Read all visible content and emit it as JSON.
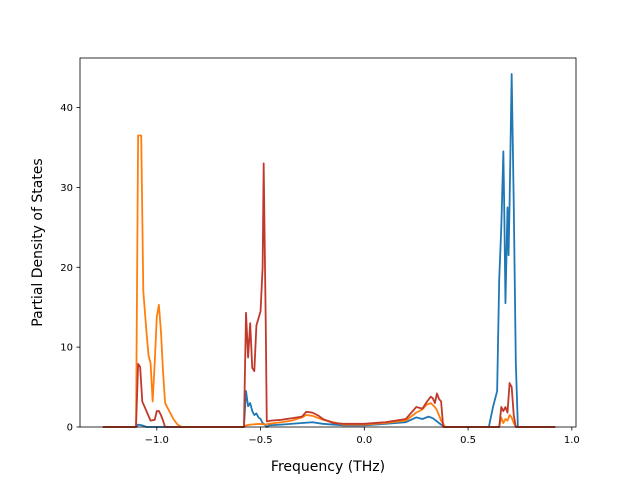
{
  "chart_data": {
    "type": "line",
    "title": "",
    "xlabel": "Frequency (THz)",
    "ylabel": "Partial Density of States",
    "xlim": [
      -1.37,
      1.02
    ],
    "ylim": [
      0,
      46.2
    ],
    "xticks": [
      -1.0,
      -0.5,
      0.0,
      0.5,
      1.0
    ],
    "xtick_labels": [
      "−1.0",
      "−0.5",
      "0.0",
      "0.5",
      "1.0"
    ],
    "yticks": [
      0,
      10,
      20,
      30,
      40
    ],
    "ytick_labels": [
      "0",
      "10",
      "20",
      "30",
      "40"
    ],
    "grid": false,
    "legend": "none",
    "series": [
      {
        "color": "#1f77b4",
        "points": [
          [
            -1.26,
            0
          ],
          [
            -1.1,
            0
          ],
          [
            -1.09,
            0.3
          ],
          [
            -1.07,
            0.2
          ],
          [
            -1.05,
            0
          ],
          [
            -0.58,
            0
          ],
          [
            -0.57,
            4.5
          ],
          [
            -0.56,
            2.6
          ],
          [
            -0.55,
            3
          ],
          [
            -0.54,
            2
          ],
          [
            -0.53,
            1.5
          ],
          [
            -0.52,
            1.7
          ],
          [
            -0.51,
            1.2
          ],
          [
            -0.5,
            1
          ],
          [
            -0.49,
            0.5
          ],
          [
            -0.48,
            0.3
          ],
          [
            -0.47,
            0
          ],
          [
            -0.46,
            0.2
          ],
          [
            -0.4,
            0.3
          ],
          [
            -0.3,
            0.5
          ],
          [
            -0.25,
            0.6
          ],
          [
            -0.2,
            0.4
          ],
          [
            -0.1,
            0.2
          ],
          [
            0,
            0.2
          ],
          [
            0.1,
            0.4
          ],
          [
            0.2,
            0.6
          ],
          [
            0.25,
            1.2
          ],
          [
            0.28,
            1
          ],
          [
            0.31,
            1.3
          ],
          [
            0.33,
            1.1
          ],
          [
            0.35,
            0.7
          ],
          [
            0.37,
            0.3
          ],
          [
            0.39,
            0
          ],
          [
            0.6,
            0
          ],
          [
            0.62,
            2.5
          ],
          [
            0.64,
            4.5
          ],
          [
            0.65,
            18.5
          ],
          [
            0.66,
            25
          ],
          [
            0.67,
            34.5
          ],
          [
            0.675,
            26
          ],
          [
            0.68,
            15.5
          ],
          [
            0.69,
            27.5
          ],
          [
            0.695,
            21.5
          ],
          [
            0.7,
            28
          ],
          [
            0.71,
            44.2
          ],
          [
            0.72,
            28
          ],
          [
            0.73,
            8
          ],
          [
            0.74,
            0
          ],
          [
            0.92,
            0
          ]
        ]
      },
      {
        "color": "#ff7f0e",
        "points": [
          [
            -1.26,
            0
          ],
          [
            -1.1,
            0
          ],
          [
            -1.09,
            36.5
          ],
          [
            -1.075,
            36.5
          ],
          [
            -1.065,
            17
          ],
          [
            -1.05,
            12
          ],
          [
            -1.04,
            9
          ],
          [
            -1.03,
            8
          ],
          [
            -1.02,
            3.2
          ],
          [
            -1.01,
            8
          ],
          [
            -1.0,
            13.8
          ],
          [
            -0.99,
            15.3
          ],
          [
            -0.98,
            12
          ],
          [
            -0.97,
            7
          ],
          [
            -0.96,
            3
          ],
          [
            -0.94,
            2
          ],
          [
            -0.92,
            1
          ],
          [
            -0.9,
            0.3
          ],
          [
            -0.88,
            0
          ],
          [
            -0.58,
            0
          ],
          [
            -0.57,
            0.2
          ],
          [
            -0.55,
            0.3
          ],
          [
            -0.5,
            0.4
          ],
          [
            -0.48,
            0.3
          ],
          [
            -0.46,
            0.4
          ],
          [
            -0.4,
            0.6
          ],
          [
            -0.35,
            0.8
          ],
          [
            -0.3,
            1.2
          ],
          [
            -0.28,
            1.5
          ],
          [
            -0.25,
            1.4
          ],
          [
            -0.2,
            0.9
          ],
          [
            -0.1,
            0.3
          ],
          [
            0,
            0.3
          ],
          [
            0.1,
            0.5
          ],
          [
            0.2,
            0.8
          ],
          [
            0.25,
            1.8
          ],
          [
            0.28,
            2.2
          ],
          [
            0.3,
            2.8
          ],
          [
            0.32,
            3
          ],
          [
            0.34,
            2.5
          ],
          [
            0.35,
            2.1
          ],
          [
            0.37,
            0.8
          ],
          [
            0.39,
            0
          ],
          [
            0.65,
            0
          ],
          [
            0.66,
            1.2
          ],
          [
            0.67,
            0.5
          ],
          [
            0.68,
            1
          ],
          [
            0.69,
            0.8
          ],
          [
            0.7,
            1.5
          ],
          [
            0.71,
            1.2
          ],
          [
            0.72,
            0.5
          ],
          [
            0.73,
            0
          ],
          [
            0.92,
            0
          ]
        ]
      },
      {
        "color": "#c0392b",
        "points": [
          [
            -1.26,
            0
          ],
          [
            -1.1,
            0
          ],
          [
            -1.09,
            7.9
          ],
          [
            -1.08,
            7.5
          ],
          [
            -1.07,
            3.2
          ],
          [
            -1.05,
            2
          ],
          [
            -1.03,
            0.8
          ],
          [
            -1.01,
            0.9
          ],
          [
            -1.0,
            2
          ],
          [
            -0.99,
            2
          ],
          [
            -0.98,
            1.5
          ],
          [
            -0.97,
            0.8
          ],
          [
            -0.96,
            0
          ],
          [
            -0.58,
            0
          ],
          [
            -0.57,
            14.3
          ],
          [
            -0.56,
            8.7
          ],
          [
            -0.55,
            13
          ],
          [
            -0.54,
            7.4
          ],
          [
            -0.53,
            7
          ],
          [
            -0.52,
            12.7
          ],
          [
            -0.5,
            14.5
          ],
          [
            -0.49,
            20
          ],
          [
            -0.485,
            33
          ],
          [
            -0.475,
            13
          ],
          [
            -0.47,
            0.7
          ],
          [
            -0.45,
            0.8
          ],
          [
            -0.4,
            0.9
          ],
          [
            -0.35,
            1.1
          ],
          [
            -0.3,
            1.3
          ],
          [
            -0.28,
            1.9
          ],
          [
            -0.25,
            1.8
          ],
          [
            -0.22,
            1.4
          ],
          [
            -0.2,
            1
          ],
          [
            -0.15,
            0.5
          ],
          [
            -0.1,
            0.4
          ],
          [
            0,
            0.4
          ],
          [
            0.1,
            0.6
          ],
          [
            0.2,
            1
          ],
          [
            0.25,
            2.5
          ],
          [
            0.28,
            2.3
          ],
          [
            0.3,
            3.1
          ],
          [
            0.32,
            3.8
          ],
          [
            0.33,
            3.6
          ],
          [
            0.34,
            3
          ],
          [
            0.35,
            4.2
          ],
          [
            0.36,
            3.5
          ],
          [
            0.37,
            3.2
          ],
          [
            0.38,
            0
          ],
          [
            0.65,
            0
          ],
          [
            0.66,
            2.5
          ],
          [
            0.67,
            2
          ],
          [
            0.68,
            2.5
          ],
          [
            0.69,
            1.8
          ],
          [
            0.7,
            5.5
          ],
          [
            0.71,
            5
          ],
          [
            0.72,
            1.5
          ],
          [
            0.73,
            0
          ],
          [
            0.92,
            0
          ]
        ]
      }
    ]
  }
}
